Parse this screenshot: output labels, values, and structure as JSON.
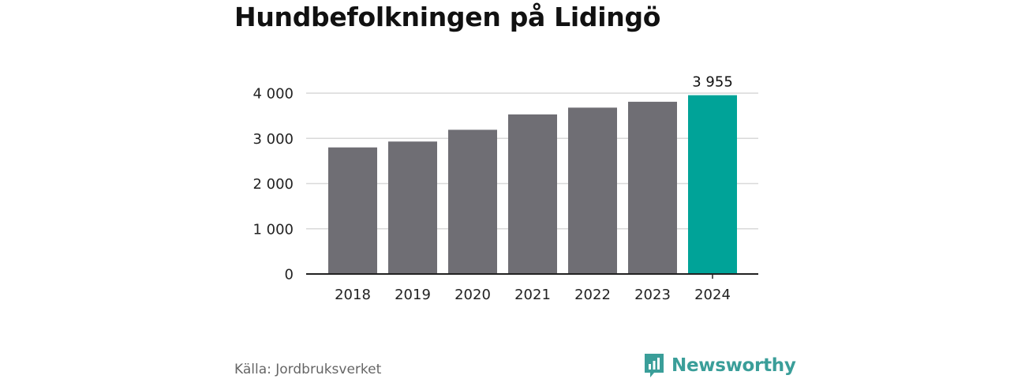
{
  "title": "Hundbefolkningen på Lidingö",
  "source": "Källa: Jordbruksverket",
  "brand": {
    "name": "Newsworthy",
    "icon": "newsworthy-logo-icon",
    "color": "#3a9e99"
  },
  "colors": {
    "bar": "#6f6e74",
    "highlight": "#00a398",
    "grid": "#d9d9d9",
    "axis": "#222222"
  },
  "chart_data": {
    "type": "bar",
    "title": "Hundbefolkningen på Lidingö",
    "categories": [
      "2018",
      "2019",
      "2020",
      "2021",
      "2022",
      "2023",
      "2024"
    ],
    "values": [
      2800,
      2930,
      3190,
      3530,
      3680,
      3810,
      3955
    ],
    "ylim": [
      0,
      4000
    ],
    "yticks": [
      0,
      1000,
      2000,
      3000,
      4000
    ],
    "ytick_labels": [
      "0",
      "1 000",
      "2 000",
      "3 000",
      "4 000"
    ],
    "highlight_index": 6,
    "data_labels": [
      {
        "index": 6,
        "text": "3 955"
      }
    ],
    "grid": true,
    "xlabel": "",
    "ylabel": ""
  }
}
